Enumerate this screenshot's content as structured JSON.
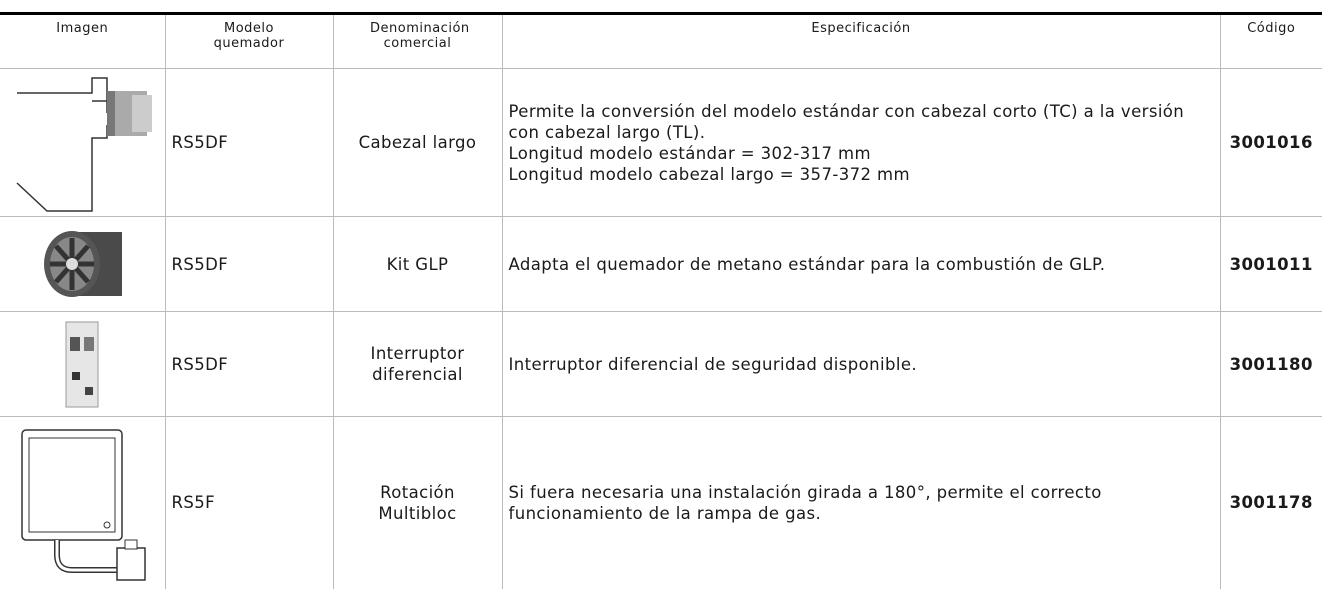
{
  "table": {
    "headers": [
      "Imagen",
      "Modelo quemador",
      "Denominación comercial",
      "Especificación",
      "Código"
    ],
    "rows": [
      {
        "model": "RS5DF",
        "name": "Cabezal largo",
        "spec": [
          "Permite la conversión del modelo estándar con cabezal corto (TC) a la versión con cabezal largo (TL).",
          "Longitud modelo estándar = 302-317 mm",
          "Longitud modelo cabezal largo = 357-372 mm"
        ],
        "code": "3001016"
      },
      {
        "model": "RS5DF",
        "name": "Kit GLP",
        "spec": [
          "Adapta el quemador de metano estándar para la combustión de GLP."
        ],
        "code": "3001011"
      },
      {
        "model": "RS5DF",
        "name": "Interruptor diferencial",
        "spec": [
          "Interruptor diferencial de seguridad disponible."
        ],
        "code": "3001180"
      },
      {
        "model": "RS5F",
        "name": "Rotación Multibloc",
        "spec": [
          "Si fuera necesaria una instalación girada a 180°, permite el correcto funcionamiento de la rampa de gas."
        ],
        "code": "3001178"
      }
    ]
  }
}
